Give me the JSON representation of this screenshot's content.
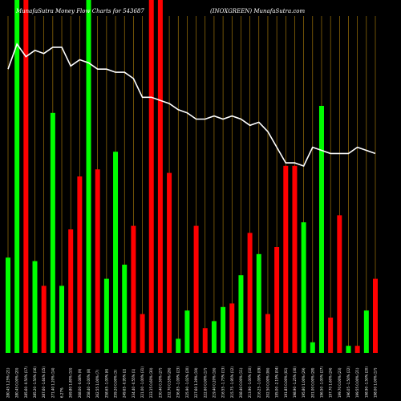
{
  "chart_data": {
    "type": "bar",
    "title": "MunafaSutra  Money Flow  Charts for 543687",
    "subtitle": "(INOXGREEN) MunafaSutra.com",
    "colors": {
      "up": "#00ff00",
      "down": "#ff0000",
      "line": "#ffffff",
      "grid": "#b8860b",
      "background": "#000000"
    },
    "ylim": [
      0,
      100
    ],
    "categories": [
      "280.45 1.25% (21)",
      "280.45 0.00% (20)",
      "285.60 -0.50% (17)",
      "285.20 -1.50% (16)",
      "287.60 -1.64% (15)",
      "271.40 1.20% (14)",
      "6.27%",
      "269.80 1.80% (10)",
      "268.00 -0.08% (9)",
      "258.40 -2.00% (8)",
      "262.55 1.00% (7)",
      "258.65 -1.00% (6)",
      "259.20 0.00% (3)",
      "249.65 -0.95% (2)",
      "234.40 -0.55% (1)",
      "221.00 -1.00% (31)",
      "233.15 0.60% (30)",
      "230.40 0.30% (27)",
      "232.70 0.55% (26)",
      "236.85 -1.09% (23)",
      "225.90 -1.02% (20)",
      "227.60 1.39% (19)",
      "222.60 0.00% (17)",
      "219.40 0.20% (16)",
      "216.55 -1.73% (13)",
      "215.75 -1.95% (12)",
      "208.40 0.00% (11)",
      "213.90 -1.00% (10)",
      "216.25 -1.09% (09)",
      "202.50 0.00% (06)",
      "195.00 -2.19% (04)",
      "191.85 0.00% (02)",
      "198.90 -1.25% (30)",
      "195.80 1.00% (29)",
      "201.00 0.00% (28)",
      "196.50 -1.00% (27)",
      "197.70 1.60% (24)",
      "199.70 0.00% (23)",
      "196.05 -1.50% (22)",
      "199.55 0.00% (21)",
      "198.90 -1.50% (20)",
      "198.00 1.00% (17)"
    ],
    "values": [
      27,
      100,
      100,
      26,
      19,
      68,
      19,
      35,
      50,
      100,
      52,
      21,
      57,
      25,
      36,
      11,
      100,
      100,
      51,
      4,
      12,
      36,
      7,
      9,
      13,
      14,
      22,
      34,
      28,
      11,
      30,
      53,
      53,
      37,
      3,
      70,
      10,
      39,
      2,
      2,
      12,
      21
    ],
    "directions": [
      "up",
      "up",
      "down",
      "up",
      "down",
      "up",
      "up",
      "down",
      "down",
      "up",
      "down",
      "up",
      "up",
      "up",
      "down",
      "down",
      "down",
      "down",
      "down",
      "up",
      "up",
      "down",
      "down",
      "up",
      "up",
      "down",
      "up",
      "down",
      "up",
      "down",
      "down",
      "down",
      "red",
      "up",
      "up",
      "up",
      "down",
      "down",
      "up",
      "down",
      "up",
      "down"
    ],
    "line_values": [
      89,
      97,
      93,
      95,
      94,
      96,
      96,
      90,
      92,
      91,
      89,
      89,
      88,
      88,
      86,
      80,
      80,
      79,
      78,
      76,
      75,
      73,
      73,
      74,
      73,
      74,
      73,
      71,
      72,
      69,
      64,
      59,
      59,
      58,
      64,
      63,
      62,
      62,
      62,
      64,
      63,
      62
    ]
  }
}
